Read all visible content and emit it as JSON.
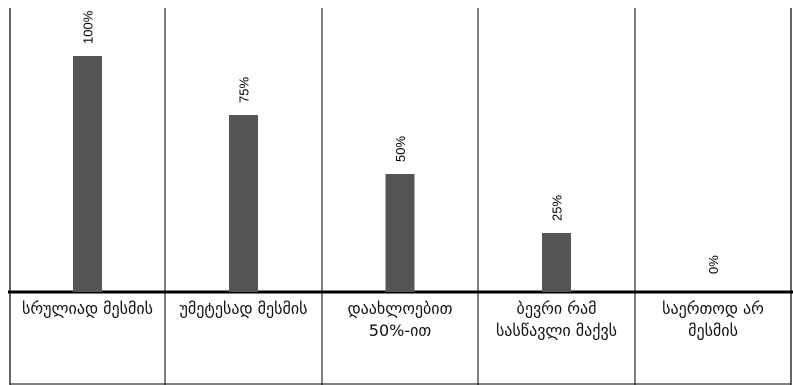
{
  "chart_data": {
    "type": "bar",
    "categories": [
      "სრულიად მესმის",
      "უმეტესად მესმის",
      "დაახლოებით 50%-ით",
      "ბევრი რამ სასწავლი მაქვს",
      "საერთოდ არ მესმის"
    ],
    "values": [
      100,
      75,
      50,
      25,
      0
    ],
    "value_labels": [
      "100%",
      "75%",
      "50%",
      "25%",
      "0%"
    ],
    "ylim": [
      0,
      100
    ],
    "grid": false,
    "bar_color": "#555555"
  }
}
